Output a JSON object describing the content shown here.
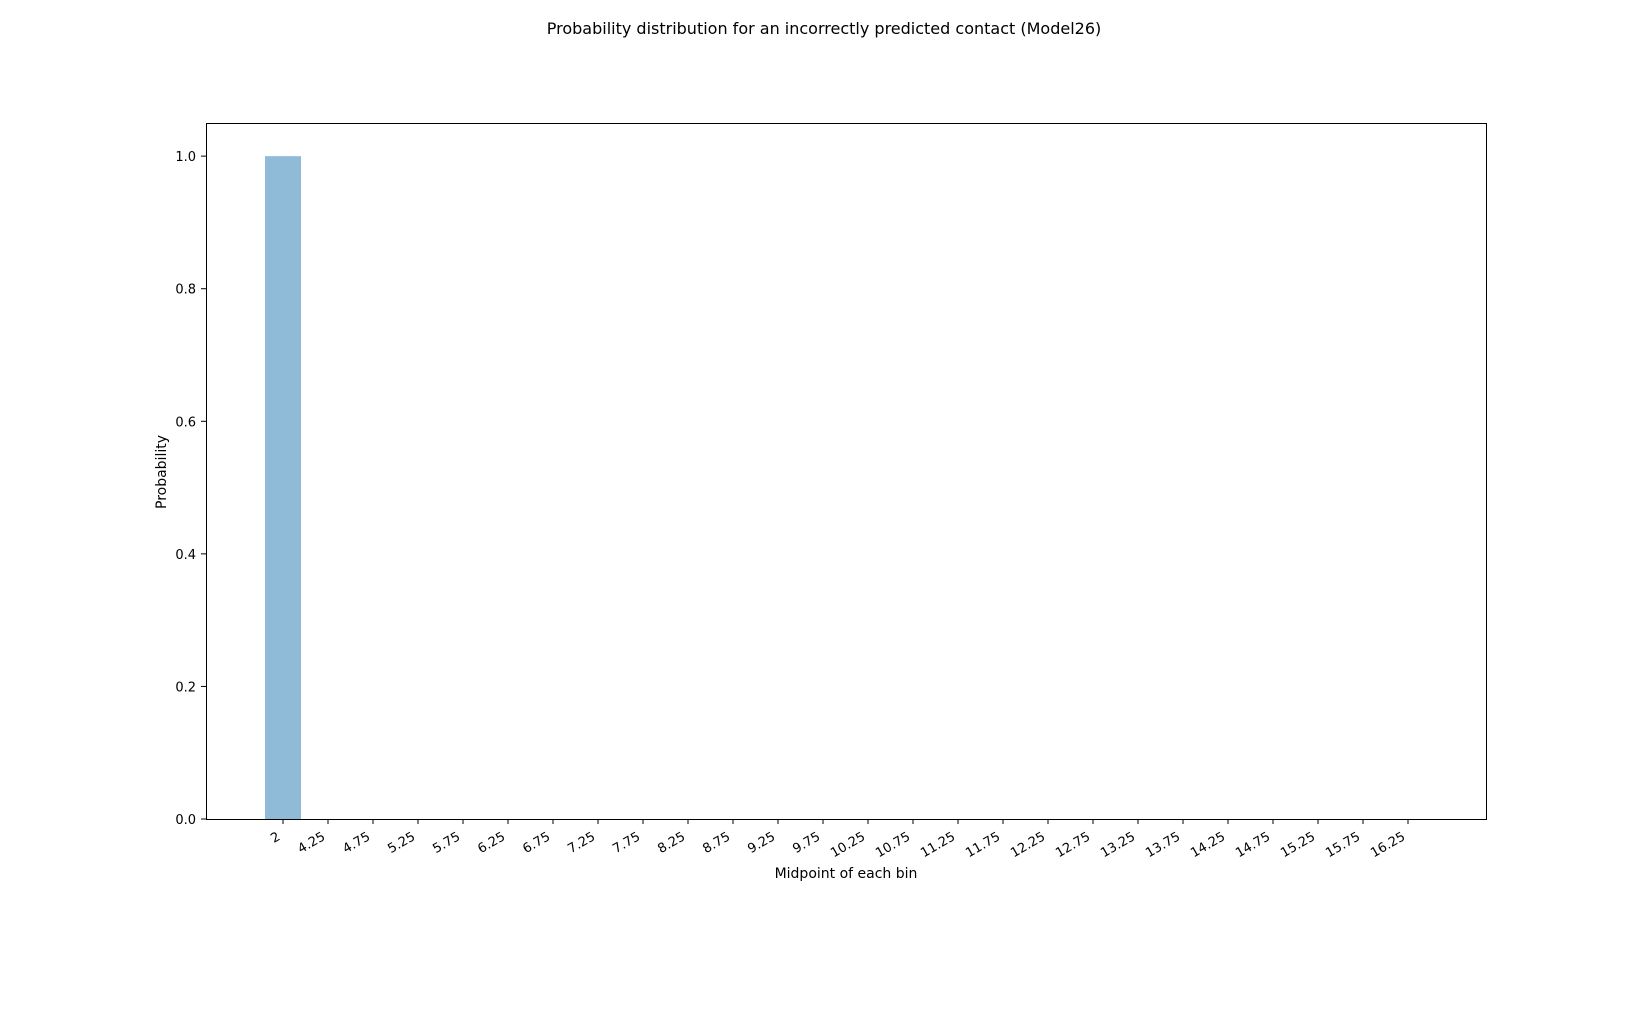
{
  "chart_data": {
    "type": "bar",
    "title": "Probability distribution for an incorrectly predicted contact (Model26)",
    "xlabel": "Midpoint of each bin",
    "ylabel": "Probability",
    "categories": [
      "2",
      "4.25",
      "4.75",
      "5.25",
      "5.75",
      "6.25",
      "6.75",
      "7.25",
      "7.75",
      "8.25",
      "8.75",
      "9.25",
      "9.75",
      "10.25",
      "10.75",
      "11.25",
      "11.75",
      "12.25",
      "12.75",
      "13.25",
      "13.75",
      "14.25",
      "14.75",
      "15.25",
      "15.75",
      "16.25"
    ],
    "values": [
      1.0,
      0,
      0,
      0,
      0,
      0,
      0,
      0,
      0,
      0,
      0,
      0,
      0,
      0,
      0,
      0,
      0,
      0,
      0,
      0,
      0,
      0,
      0,
      0,
      0,
      0
    ],
    "ylim": [
      0,
      1.05
    ],
    "yticks": [
      0.0,
      0.2,
      0.4,
      0.6,
      0.8,
      1.0
    ],
    "ytick_labels": [
      "0.0",
      "0.2",
      "0.4",
      "0.6",
      "0.8",
      "1.0"
    ],
    "bar_color": "#8fbbd9",
    "grid": false,
    "legend": "none"
  }
}
